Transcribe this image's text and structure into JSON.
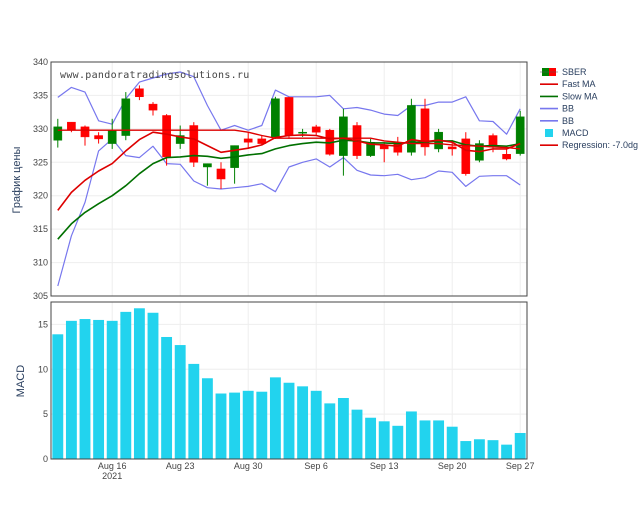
{
  "watermark": "www.pandoratradingsolutions.ru",
  "colors": {
    "up": "#008000",
    "down": "#ff0000",
    "fast_ma": "#dd0000",
    "slow_ma": "#007000",
    "bb": "#7777ee",
    "macd": "#22d3ee",
    "regression": "#dd0000",
    "grid": "#eeeeee",
    "frame": "#444444"
  },
  "legend": [
    {
      "key": "sber",
      "label": "SBER",
      "kind": "candle"
    },
    {
      "key": "fast_ma",
      "label": "Fast MA",
      "kind": "line"
    },
    {
      "key": "slow_ma",
      "label": "Slow MA",
      "kind": "line"
    },
    {
      "key": "bb_upper",
      "label": "BB",
      "kind": "line"
    },
    {
      "key": "bb_lower",
      "label": "BB",
      "kind": "line"
    },
    {
      "key": "macd",
      "label": "MACD",
      "kind": "square"
    },
    {
      "key": "regression",
      "label": "Regression: -7.0dg",
      "kind": "line"
    }
  ],
  "chart_data": [
    {
      "type": "candlestick",
      "ylabel": "График цены",
      "ylim": [
        305,
        340
      ],
      "yticks": [
        305,
        310,
        315,
        320,
        325,
        330,
        335,
        340
      ],
      "xlim": [
        0,
        34
      ],
      "x_ticks": [
        {
          "i": 4,
          "label": "Aug 16",
          "sub": "2021"
        },
        {
          "i": 9,
          "label": "Aug 23",
          "sub": ""
        },
        {
          "i": 14,
          "label": "Aug 30",
          "sub": ""
        },
        {
          "i": 19,
          "label": "Sep 6",
          "sub": ""
        },
        {
          "i": 24,
          "label": "Sep 13",
          "sub": ""
        },
        {
          "i": 29,
          "label": "Sep 20",
          "sub": ""
        },
        {
          "i": 34,
          "label": "Sep 27",
          "sub": ""
        }
      ],
      "candles": [
        {
          "o": 328.3,
          "h": 331.5,
          "l": 327.2,
          "c": 330.3
        },
        {
          "o": 331.0,
          "h": 331.0,
          "l": 329.5,
          "c": 329.8
        },
        {
          "o": 330.3,
          "h": 330.5,
          "l": 327.5,
          "c": 328.8
        },
        {
          "o": 329.0,
          "h": 329.5,
          "l": 327.8,
          "c": 328.5
        },
        {
          "o": 327.8,
          "h": 331.5,
          "l": 327.0,
          "c": 329.8
        },
        {
          "o": 329.0,
          "h": 335.5,
          "l": 328.3,
          "c": 334.5
        },
        {
          "o": 336.0,
          "h": 336.5,
          "l": 334.3,
          "c": 334.8
        },
        {
          "o": 333.7,
          "h": 334.0,
          "l": 332.0,
          "c": 332.8
        },
        {
          "o": 332.0,
          "h": 332.2,
          "l": 324.5,
          "c": 325.8
        },
        {
          "o": 327.8,
          "h": 330.5,
          "l": 327.0,
          "c": 329.0
        },
        {
          "o": 330.5,
          "h": 331.0,
          "l": 324.3,
          "c": 325.0
        },
        {
          "o": 324.3,
          "h": 324.8,
          "l": 321.5,
          "c": 324.8
        },
        {
          "o": 324.0,
          "h": 325.0,
          "l": 321.0,
          "c": 322.5
        },
        {
          "o": 324.2,
          "h": 327.5,
          "l": 321.8,
          "c": 327.5
        },
        {
          "o": 328.5,
          "h": 329.5,
          "l": 327.0,
          "c": 328.0
        },
        {
          "o": 328.5,
          "h": 329.0,
          "l": 327.5,
          "c": 327.8
        },
        {
          "o": 328.8,
          "h": 334.8,
          "l": 328.5,
          "c": 334.5
        },
        {
          "o": 334.7,
          "h": 334.8,
          "l": 328.5,
          "c": 329.0
        },
        {
          "o": 329.5,
          "h": 330.0,
          "l": 328.8,
          "c": 329.5
        },
        {
          "o": 330.3,
          "h": 330.6,
          "l": 329.0,
          "c": 329.5
        },
        {
          "o": 329.8,
          "h": 330.0,
          "l": 326.0,
          "c": 326.2
        },
        {
          "o": 326.0,
          "h": 333.0,
          "l": 323.0,
          "c": 331.8
        },
        {
          "o": 330.5,
          "h": 331.0,
          "l": 325.5,
          "c": 326.0
        },
        {
          "o": 326.0,
          "h": 328.5,
          "l": 325.8,
          "c": 328.0
        },
        {
          "o": 327.5,
          "h": 328.0,
          "l": 325.0,
          "c": 327.0
        },
        {
          "o": 328.0,
          "h": 328.8,
          "l": 326.0,
          "c": 326.5
        },
        {
          "o": 326.5,
          "h": 334.5,
          "l": 326.0,
          "c": 333.5
        },
        {
          "o": 333.0,
          "h": 334.5,
          "l": 326.0,
          "c": 327.3
        },
        {
          "o": 327.0,
          "h": 330.0,
          "l": 326.5,
          "c": 329.5
        },
        {
          "o": 327.3,
          "h": 328.3,
          "l": 326.0,
          "c": 327.0
        },
        {
          "o": 328.5,
          "h": 329.5,
          "l": 323.0,
          "c": 323.3
        },
        {
          "o": 325.3,
          "h": 328.3,
          "l": 325.0,
          "c": 327.8
        },
        {
          "o": 329.0,
          "h": 329.3,
          "l": 326.5,
          "c": 327.3
        },
        {
          "o": 326.2,
          "h": 327.0,
          "l": 325.3,
          "c": 325.5
        },
        {
          "o": 326.3,
          "h": 332.7,
          "l": 326.0,
          "c": 331.8
        }
      ],
      "fast_ma": [
        317.8,
        320.5,
        322.3,
        323.7,
        324.8,
        326.7,
        328.4,
        329.5,
        329.2,
        328.8,
        328.5,
        327.5,
        326.5,
        326.8,
        327.1,
        327.6,
        328.7,
        329.0,
        329.1,
        329.0,
        328.5,
        328.6,
        328.2,
        327.7,
        327.6,
        327.4,
        328.4,
        328.1,
        328.3,
        328.0,
        326.8,
        326.6,
        327.0,
        327.0,
        327.8
      ],
      "slow_ma": [
        313.5,
        315.8,
        317.5,
        318.8,
        320.0,
        321.5,
        323.3,
        324.8,
        325.7,
        325.8,
        326.0,
        325.9,
        325.6,
        325.8,
        326.1,
        326.3,
        327.0,
        327.5,
        327.8,
        328.0,
        327.9,
        328.3,
        328.2,
        327.9,
        327.9,
        327.8,
        328.0,
        328.0,
        328.2,
        328.2,
        327.6,
        327.4,
        327.5,
        327.4,
        327.8
      ],
      "bb_upper": [
        334.7,
        336.2,
        335.5,
        331.2,
        330.7,
        334.5,
        337.0,
        337.6,
        338.2,
        338.5,
        337.8,
        333.5,
        329.8,
        330.5,
        329.8,
        330.5,
        335.8,
        334.8,
        334.8,
        334.8,
        335.0,
        333.0,
        333.2,
        332.8,
        332.2,
        332.0,
        333.5,
        333.5,
        334.0,
        334.0,
        334.8,
        331.2,
        331.1,
        329.2,
        333.0
      ],
      "bb_lower": [
        306.5,
        314.0,
        319.0,
        326.7,
        328.5,
        326.0,
        325.7,
        327.4,
        324.8,
        324.7,
        322.2,
        321.2,
        321.0,
        321.2,
        321.4,
        321.8,
        320.6,
        324.3,
        325.0,
        325.5,
        324.3,
        325.7,
        323.8,
        323.1,
        323.0,
        323.2,
        322.4,
        322.7,
        323.7,
        323.5,
        321.4,
        322.9,
        323.0,
        323.0,
        321.6
      ],
      "regression": [
        329.8,
        329.8,
        329.8,
        329.8,
        329.8,
        329.8,
        329.8,
        329.8,
        329.8,
        329.8,
        329.8,
        329.8,
        329.8,
        329.8,
        329.5,
        329.0,
        328.6,
        328.6,
        328.6,
        328.6,
        328.6,
        328.6,
        328.6,
        328.6,
        328.2,
        328.0,
        327.8,
        327.8,
        327.8,
        327.6,
        327.5,
        327.4,
        327.3,
        327.2,
        327.0
      ]
    },
    {
      "type": "bar",
      "ylabel": "MACD",
      "ylim": [
        0,
        17.5
      ],
      "yticks": [
        0,
        5,
        10,
        15
      ],
      "values": [
        13.9,
        15.4,
        15.6,
        15.5,
        15.4,
        16.4,
        16.8,
        16.3,
        13.6,
        12.7,
        10.6,
        9.0,
        7.3,
        7.4,
        7.6,
        7.5,
        9.1,
        8.5,
        8.1,
        7.6,
        6.2,
        6.8,
        5.5,
        4.6,
        4.2,
        3.7,
        5.3,
        4.3,
        4.3,
        3.6,
        2.0,
        2.2,
        2.1,
        1.6,
        2.9
      ]
    }
  ]
}
